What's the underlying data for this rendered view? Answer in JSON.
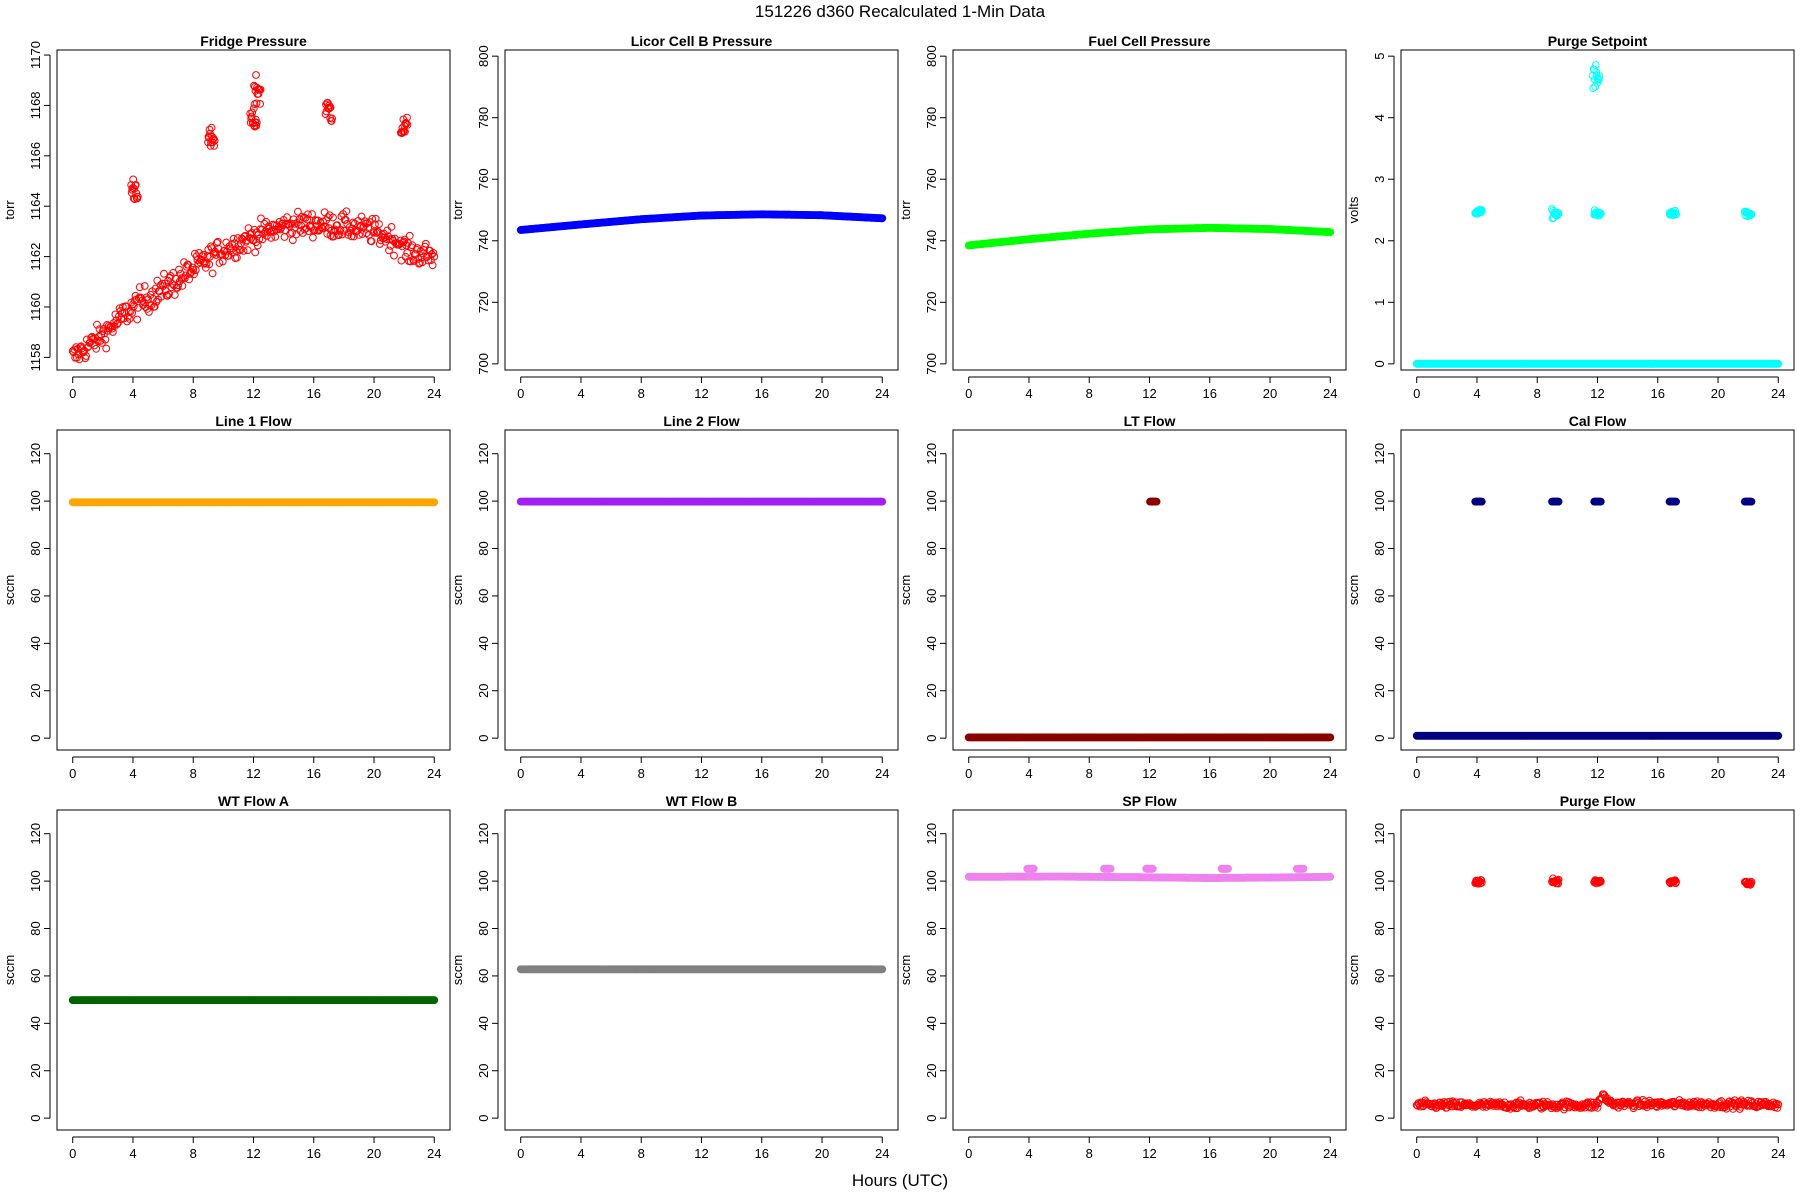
{
  "figure": {
    "title": "151226   d360   Recalculated 1-Min Data",
    "xlabel": "Hours (UTC)"
  },
  "chart_data": [
    {
      "type": "scatter",
      "title": "Fridge Pressure",
      "ylabel": "torr",
      "xlabel": "",
      "xlim": [
        0,
        24
      ],
      "ylim": [
        1157.5,
        1170.2
      ],
      "xticks": [
        0,
        4,
        8,
        12,
        16,
        20,
        24
      ],
      "yticks": [
        1158,
        1160,
        1162,
        1164,
        1166,
        1168,
        1170
      ],
      "color": "#ff0000",
      "marker": "circle",
      "series": [
        {
          "segments": [
            [
              0,
              1158.0,
              0.5
            ],
            [
              2,
              1158.9,
              0.5
            ],
            [
              4,
              1160.0,
              0.55
            ],
            [
              6,
              1160.7,
              0.55
            ],
            [
              8,
              1161.5,
              0.55
            ],
            [
              9,
              1161.9,
              0.55
            ],
            [
              9.8,
              1162.2,
              0.5
            ],
            [
              12,
              1162.8,
              0.5
            ],
            [
              14,
              1163.2,
              0.5
            ],
            [
              16,
              1163.3,
              0.5
            ],
            [
              18,
              1163.2,
              0.5
            ],
            [
              20,
              1163.0,
              0.5
            ],
            [
              21.6,
              1162.6,
              0.5
            ],
            [
              22.2,
              1162.2,
              0.5
            ],
            [
              24,
              1162.0,
              0.5
            ]
          ]
        },
        {
          "clusters": [
            [
              4.1,
              1164.7,
              0.45
            ],
            [
              9.2,
              1166.6,
              0.4
            ],
            [
              12.0,
              1167.4,
              0.35
            ],
            [
              12.25,
              1168.6,
              0.6
            ],
            [
              17.0,
              1167.8,
              0.45
            ],
            [
              22.0,
              1167.1,
              0.35
            ]
          ]
        }
      ]
    },
    {
      "type": "scatter",
      "title": "Licor Cell B Pressure",
      "ylabel": "torr",
      "xlabel": "",
      "xlim": [
        0,
        24
      ],
      "ylim": [
        698,
        802
      ],
      "xticks": [
        0,
        4,
        8,
        12,
        16,
        20,
        24
      ],
      "yticks": [
        700,
        720,
        740,
        760,
        780,
        800
      ],
      "color": "#0000ff",
      "marker": "filled",
      "series": [
        {
          "segments": [
            [
              0,
              743.5,
              0
            ],
            [
              4,
              745.3,
              0
            ],
            [
              8,
              747.0,
              0
            ],
            [
              12,
              748.2,
              0
            ],
            [
              16,
              748.6,
              0
            ],
            [
              20,
              748.3,
              0
            ],
            [
              24,
              747.3,
              0
            ]
          ]
        }
      ]
    },
    {
      "type": "scatter",
      "title": "Fuel Cell Pressure",
      "ylabel": "torr",
      "xlabel": "",
      "xlim": [
        0,
        24
      ],
      "ylim": [
        698,
        802
      ],
      "xticks": [
        0,
        4,
        8,
        12,
        16,
        20,
        24
      ],
      "yticks": [
        700,
        720,
        740,
        760,
        780,
        800
      ],
      "color": "#00ff00",
      "marker": "filled",
      "series": [
        {
          "segments": [
            [
              0,
              738.5,
              0
            ],
            [
              4,
              740.5,
              0
            ],
            [
              8,
              742.3,
              0
            ],
            [
              12,
              743.7,
              0
            ],
            [
              16,
              744.2,
              0
            ],
            [
              20,
              743.8,
              0
            ],
            [
              24,
              742.8,
              0
            ]
          ]
        }
      ]
    },
    {
      "type": "scatter",
      "title": "Purge Setpoint",
      "ylabel": "volts",
      "xlabel": "",
      "xlim": [
        0,
        24
      ],
      "ylim": [
        -0.1,
        5.1
      ],
      "xticks": [
        0,
        4,
        8,
        12,
        16,
        20,
        24
      ],
      "yticks": [
        0,
        1,
        2,
        3,
        4,
        5
      ],
      "color": "#00ffff",
      "marker": "circle",
      "series": [
        {
          "segments": [
            [
              0,
              0,
              0
            ],
            [
              24,
              0,
              0
            ]
          ]
        },
        {
          "clusters": [
            [
              4.1,
              2.47,
              0.03
            ],
            [
              9.2,
              2.44,
              0.06
            ],
            [
              12.0,
              2.43,
              0.05
            ],
            [
              17.0,
              2.45,
              0.03
            ],
            [
              22.0,
              2.43,
              0.04
            ]
          ]
        },
        {
          "clusters": [
            [
              11.9,
              4.63,
              0.2
            ]
          ]
        }
      ]
    },
    {
      "type": "scatter",
      "title": "Line 1 Flow",
      "ylabel": "sccm",
      "xlabel": "",
      "xlim": [
        0,
        24
      ],
      "ylim": [
        -5,
        130
      ],
      "xticks": [
        0,
        4,
        8,
        12,
        16,
        20,
        24
      ],
      "yticks": [
        0,
        20,
        40,
        60,
        80,
        100,
        120
      ],
      "color": "#ffa500",
      "marker": "filled",
      "series": [
        {
          "segments": [
            [
              0,
              99.5,
              0
            ],
            [
              24,
              99.5,
              0
            ]
          ]
        }
      ]
    },
    {
      "type": "scatter",
      "title": "Line 2 Flow",
      "ylabel": "sccm",
      "xlabel": "",
      "xlim": [
        0,
        24
      ],
      "ylim": [
        -5,
        130
      ],
      "xticks": [
        0,
        4,
        8,
        12,
        16,
        20,
        24
      ],
      "yticks": [
        0,
        20,
        40,
        60,
        80,
        100,
        120
      ],
      "color": "#a020f0",
      "marker": "filled",
      "series": [
        {
          "segments": [
            [
              0,
              99.8,
              0
            ],
            [
              24,
              99.8,
              0
            ]
          ]
        }
      ]
    },
    {
      "type": "scatter",
      "title": "LT Flow",
      "ylabel": "sccm",
      "xlabel": "",
      "xlim": [
        0,
        24
      ],
      "ylim": [
        -5,
        130
      ],
      "xticks": [
        0,
        4,
        8,
        12,
        16,
        20,
        24
      ],
      "yticks": [
        0,
        20,
        40,
        60,
        80,
        100,
        120
      ],
      "color": "#8b0000",
      "marker": "filled",
      "series": [
        {
          "segments": [
            [
              0,
              0.3,
              0
            ],
            [
              24,
              0.3,
              0
            ]
          ]
        },
        {
          "clusters": [
            [
              12.25,
              99.8,
              0
            ]
          ]
        }
      ]
    },
    {
      "type": "scatter",
      "title": "Cal Flow",
      "ylabel": "sccm",
      "xlabel": "",
      "xlim": [
        0,
        24
      ],
      "ylim": [
        -5,
        130
      ],
      "xticks": [
        0,
        4,
        8,
        12,
        16,
        20,
        24
      ],
      "yticks": [
        0,
        20,
        40,
        60,
        80,
        100,
        120
      ],
      "color": "#000080",
      "marker": "filled",
      "series": [
        {
          "segments": [
            [
              0,
              1.0,
              0
            ],
            [
              24,
              1.0,
              0
            ]
          ]
        },
        {
          "clusters": [
            [
              4.1,
              99.8,
              0
            ],
            [
              9.2,
              99.8,
              0
            ],
            [
              12.0,
              99.8,
              0
            ],
            [
              17.0,
              99.8,
              0
            ],
            [
              22.0,
              99.8,
              0
            ]
          ]
        }
      ]
    },
    {
      "type": "scatter",
      "title": "WT Flow A",
      "ylabel": "sccm",
      "xlabel": "",
      "xlim": [
        0,
        24
      ],
      "ylim": [
        -5,
        130
      ],
      "xticks": [
        0,
        4,
        8,
        12,
        16,
        20,
        24
      ],
      "yticks": [
        0,
        20,
        40,
        60,
        80,
        100,
        120
      ],
      "color": "#006400",
      "marker": "filled",
      "series": [
        {
          "segments": [
            [
              0,
              49.8,
              0
            ],
            [
              24,
              49.8,
              0
            ]
          ]
        }
      ]
    },
    {
      "type": "scatter",
      "title": "WT Flow B",
      "ylabel": "sccm",
      "xlabel": "",
      "xlim": [
        0,
        24
      ],
      "ylim": [
        -5,
        130
      ],
      "xticks": [
        0,
        4,
        8,
        12,
        16,
        20,
        24
      ],
      "yticks": [
        0,
        20,
        40,
        60,
        80,
        100,
        120
      ],
      "color": "#808080",
      "marker": "filled",
      "series": [
        {
          "segments": [
            [
              0,
              62.8,
              0
            ],
            [
              24,
              62.8,
              0
            ]
          ]
        }
      ]
    },
    {
      "type": "scatter",
      "title": "SP Flow",
      "ylabel": "sccm",
      "xlabel": "",
      "xlim": [
        0,
        24
      ],
      "ylim": [
        -5,
        130
      ],
      "xticks": [
        0,
        4,
        8,
        12,
        16,
        20,
        24
      ],
      "yticks": [
        0,
        20,
        40,
        60,
        80,
        100,
        120
      ],
      "color": "#ee82ee",
      "marker": "filled",
      "series": [
        {
          "segments": [
            [
              0,
              101.8,
              0
            ],
            [
              6,
              101.9,
              0
            ],
            [
              12,
              101.6,
              0
            ],
            [
              16,
              101.3,
              0
            ],
            [
              20,
              101.5,
              0
            ],
            [
              24,
              101.8,
              0
            ]
          ]
        },
        {
          "clusters": [
            [
              4.1,
              105.2,
              0
            ],
            [
              9.2,
              105.2,
              0
            ],
            [
              12.0,
              105.2,
              0
            ],
            [
              17.0,
              105.2,
              0
            ],
            [
              22.0,
              105.2,
              0
            ]
          ]
        }
      ]
    },
    {
      "type": "scatter",
      "title": "Purge Flow",
      "ylabel": "sccm",
      "xlabel": "",
      "xlim": [
        0,
        24
      ],
      "ylim": [
        -5,
        130
      ],
      "xticks": [
        0,
        4,
        8,
        12,
        16,
        20,
        24
      ],
      "yticks": [
        0,
        20,
        40,
        60,
        80,
        100,
        120
      ],
      "color": "#ff0000",
      "marker": "circle",
      "series": [
        {
          "segments": [
            [
              0,
              5.5,
              1.6
            ],
            [
              12,
              5.5,
              1.6
            ],
            [
              12.3,
              9.5,
              2.0
            ],
            [
              13,
              6.0,
              1.5
            ],
            [
              24,
              5.8,
              1.6
            ]
          ]
        },
        {
          "clusters": [
            [
              4.1,
              99.6,
              0.8
            ],
            [
              9.2,
              99.8,
              1.0
            ],
            [
              12.0,
              99.9,
              0.8
            ],
            [
              17.0,
              99.9,
              0.7
            ],
            [
              22.0,
              99.3,
              0.9
            ]
          ]
        }
      ]
    }
  ]
}
